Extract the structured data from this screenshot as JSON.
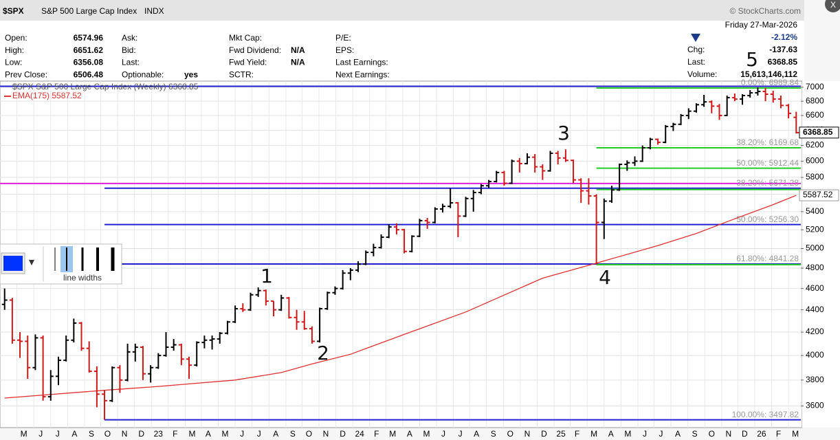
{
  "header": {
    "symbol": "$SPX",
    "name": "S&P 500 Large Cap Index",
    "exchange": "INDX",
    "credit": "© StockCharts.com",
    "columns": [
      [
        {
          "label": "Open:",
          "value": 6574.96
        },
        {
          "label": "High:",
          "value": 6651.62
        },
        {
          "label": "Low:",
          "value": 6356.08
        },
        {
          "label": "Prev Close:",
          "value": 6506.48
        }
      ],
      [
        {
          "label": "Ask:"
        },
        {
          "label": "Bid:"
        },
        {
          "label": "Last:"
        },
        {
          "label": "Optionable:",
          "value": "yes"
        }
      ],
      [
        {
          "label": "Mkt Cap:"
        },
        {
          "label": "Fwd Dividend:",
          "value": "N/A"
        },
        {
          "label": "Fwd Yield:",
          "value": "N/A"
        },
        {
          "label": "SCTR:"
        }
      ],
      [
        {
          "label": "P/E:"
        },
        {
          "label": "EPS:"
        },
        {
          "label": "Last Earnings:"
        },
        {
          "label": "Next Earnings:"
        }
      ]
    ],
    "date": "Friday  27-Mar-2026",
    "change_pct": "-2.12%",
    "chg_label": "Chg:",
    "chg": -137.63,
    "last_label": "Last:",
    "last": 6368.85,
    "volume_label": "Volume:",
    "volume": "15,613,146,112"
  },
  "widget": {
    "label": "line widths",
    "color": "#0033ff"
  },
  "chart_data": {
    "type": "ohlc",
    "legend": "$SPX S&P 500 Large Cap Index (Weekly) 6368.85",
    "up_color": "#000000",
    "down_color": "#d01818",
    "ohlc": [
      [
        4450,
        4600,
        4400,
        4490
      ],
      [
        4490,
        4510,
        4100,
        4130
      ],
      [
        4130,
        4200,
        3980,
        4120
      ],
      [
        4120,
        4170,
        3810,
        3900
      ],
      [
        3900,
        4180,
        3880,
        4150
      ],
      [
        4150,
        4170,
        3640,
        3670
      ],
      [
        3670,
        3880,
        3640,
        3830
      ],
      [
        3830,
        3990,
        3760,
        3960
      ],
      [
        3960,
        4170,
        3950,
        4130
      ],
      [
        4130,
        4320,
        4110,
        4280
      ],
      [
        4280,
        4290,
        4040,
        4060
      ],
      [
        4060,
        4120,
        3860,
        3870
      ],
      [
        3870,
        3910,
        3590,
        3690
      ],
      [
        3690,
        3720,
        3497.82,
        3640
      ],
      [
        3640,
        3910,
        3630,
        3900
      ],
      [
        3900,
        3920,
        3700,
        3800
      ],
      [
        3800,
        4100,
        3790,
        4030
      ],
      [
        4030,
        4100,
        3950,
        4070
      ],
      [
        4070,
        4080,
        3800,
        3850
      ],
      [
        3850,
        3920,
        3780,
        3900
      ],
      [
        3900,
        4020,
        3890,
        4000
      ],
      [
        4000,
        4200,
        3990,
        4070
      ],
      [
        4070,
        4140,
        4040,
        4090
      ],
      [
        4090,
        4100,
        3920,
        3970
      ],
      [
        3970,
        3990,
        3810,
        3920
      ],
      [
        3920,
        4120,
        3910,
        4110
      ],
      [
        4110,
        4170,
        4060,
        4130
      ],
      [
        4130,
        4170,
        4050,
        4140
      ],
      [
        4140,
        4200,
        4100,
        4190
      ],
      [
        4190,
        4300,
        4180,
        4290
      ],
      [
        4290,
        4440,
        4280,
        4410
      ],
      [
        4410,
        4460,
        4380,
        4400
      ],
      [
        4400,
        4560,
        4390,
        4540
      ],
      [
        4540,
        4610,
        4520,
        4580
      ],
      [
        4580,
        4590,
        4440,
        4480
      ],
      [
        4480,
        4480,
        4340,
        4400
      ],
      [
        4400,
        4540,
        4390,
        4510
      ],
      [
        4510,
        4520,
        4320,
        4330
      ],
      [
        4330,
        4400,
        4220,
        4290
      ],
      [
        4290,
        4390,
        4220,
        4230
      ],
      [
        4230,
        4250,
        4100,
        4120
      ],
      [
        4120,
        4420,
        4110,
        4410
      ],
      [
        4410,
        4570,
        4400,
        4560
      ],
      [
        4560,
        4620,
        4540,
        4600
      ],
      [
        4600,
        4780,
        4590,
        4750
      ],
      [
        4750,
        4800,
        4680,
        4780
      ],
      [
        4780,
        4870,
        4760,
        4840
      ],
      [
        4840,
        4980,
        4830,
        4960
      ],
      [
        4960,
        5050,
        4920,
        5010
      ],
      [
        5010,
        5150,
        5000,
        5120
      ],
      [
        5120,
        5260,
        5110,
        5230
      ],
      [
        5230,
        5270,
        5150,
        5200
      ],
      [
        5200,
        5210,
        4950,
        4970
      ],
      [
        4970,
        5140,
        4960,
        5130
      ],
      [
        5130,
        5320,
        5120,
        5300
      ],
      [
        5300,
        5330,
        5210,
        5280
      ],
      [
        5280,
        5450,
        5270,
        5430
      ],
      [
        5430,
        5490,
        5390,
        5460
      ],
      [
        5460,
        5670,
        5440,
        5500
      ],
      [
        5500,
        5510,
        5120,
        5350
      ],
      [
        5350,
        5570,
        5340,
        5550
      ],
      [
        5550,
        5650,
        5400,
        5620
      ],
      [
        5620,
        5720,
        5600,
        5700
      ],
      [
        5700,
        5770,
        5670,
        5750
      ],
      [
        5750,
        5880,
        5740,
        5860
      ],
      [
        5860,
        5880,
        5700,
        5730
      ],
      [
        5730,
        6020,
        5720,
        6000
      ],
      [
        6000,
        6040,
        5860,
        5970
      ],
      [
        5970,
        6100,
        5960,
        6050
      ],
      [
        6050,
        6090,
        5860,
        5930
      ],
      [
        5930,
        5960,
        5770,
        5880
      ],
      [
        5880,
        6130,
        5870,
        6100
      ],
      [
        6100,
        6130,
        5960,
        6040
      ],
      [
        6040,
        6150,
        5990,
        6010
      ],
      [
        6010,
        6020,
        5730,
        5770
      ],
      [
        5770,
        5790,
        5500,
        5640
      ],
      [
        5640,
        5790,
        5480,
        5580
      ],
      [
        5580,
        5600,
        4835.04,
        5280
      ],
      [
        5280,
        5550,
        5100,
        5520
      ],
      [
        5520,
        5700,
        5500,
        5650
      ],
      [
        5650,
        5970,
        5640,
        5960
      ],
      [
        5960,
        6010,
        5880,
        5980
      ],
      [
        5980,
        6060,
        5940,
        6000
      ],
      [
        6000,
        6200,
        5990,
        6170
      ],
      [
        6170,
        6300,
        6150,
        6280
      ],
      [
        6280,
        6290,
        6210,
        6240
      ],
      [
        6240,
        6470,
        6230,
        6450
      ],
      [
        6450,
        6500,
        6390,
        6480
      ],
      [
        6480,
        6620,
        6470,
        6600
      ],
      [
        6600,
        6700,
        6550,
        6660
      ],
      [
        6660,
        6770,
        6640,
        6750
      ],
      [
        6750,
        6890,
        6720,
        6790
      ],
      [
        6790,
        6810,
        6630,
        6730
      ],
      [
        6730,
        6760,
        6540,
        6600
      ],
      [
        6600,
        6880,
        6590,
        6850
      ],
      [
        6850,
        6910,
        6800,
        6830
      ],
      [
        6830,
        6900,
        6750,
        6880
      ],
      [
        6880,
        6960,
        6850,
        6920
      ],
      [
        6920,
        7000,
        6880,
        6940
      ],
      [
        6940,
        6990,
        6800,
        6900
      ],
      [
        6900,
        6950,
        6780,
        6830
      ],
      [
        6830,
        6880,
        6700,
        6740
      ],
      [
        6740,
        6760,
        6560,
        6630
      ],
      [
        6574.96,
        6651.62,
        6356.08,
        6368.85
      ]
    ],
    "ema": {
      "name": "EMA(175) 5587.52",
      "color": "#e03030",
      "x": [
        0,
        13,
        20,
        30,
        36,
        40,
        45,
        52,
        60,
        70,
        77,
        85,
        90,
        95,
        100,
        103
      ],
      "values": [
        3660,
        3720,
        3750,
        3800,
        3860,
        3930,
        4010,
        4180,
        4380,
        4700,
        4850,
        5030,
        5160,
        5320,
        5480,
        5587.52
      ]
    },
    "hlines": [
      {
        "value": 7014.8,
        "color": "#2020d0",
        "start": -0.6
      },
      {
        "value": 5727,
        "color": "#e020e0",
        "start": -0.6
      },
      {
        "value": 5671.28,
        "color": "#2020d0",
        "start": 13,
        "label": "38.20%: 5671.28"
      },
      {
        "value": 5256.3,
        "color": "#2020d0",
        "start": 13,
        "label": "50.00%: 5256.30"
      },
      {
        "value": 4841.28,
        "color": "#2020d0",
        "start": 13,
        "label": "61.80%: 4841.28"
      },
      {
        "value": 3497.82,
        "color": "#2020d0",
        "start": 13,
        "label": "100.00%: 3497.82"
      },
      {
        "value": 6989.84,
        "color": "#22cc22",
        "start": 77,
        "label": "0.00%: 6989.84"
      },
      {
        "value": 6169.68,
        "color": "#22cc22",
        "start": 77,
        "label": "38.20%: 6169.68"
      },
      {
        "value": 5912.44,
        "color": "#22cc22",
        "start": 77,
        "label": "50.00%: 5912.44"
      },
      {
        "value": 5655.2,
        "color": "#22cc22",
        "start": 77
      },
      {
        "value": 4835.04,
        "color": "#22cc22",
        "start": 77
      }
    ],
    "log_scale": true,
    "grid": true,
    "xlim": [
      -0.6,
      103.6
    ],
    "ylim": [
      3441,
      7111
    ],
    "yticks": [
      3600,
      3800,
      4000,
      4200,
      4400,
      4600,
      4800,
      5000,
      5200,
      5400,
      5600,
      5800,
      6000,
      6200,
      6400,
      6600,
      6800,
      7000
    ],
    "xticks": [
      {
        "value": 1.6,
        "label": "M"
      },
      {
        "value": 3.8,
        "label": "J"
      },
      {
        "value": 6.0,
        "label": "J"
      },
      {
        "value": 8.2,
        "label": "A"
      },
      {
        "value": 10.4,
        "label": "S"
      },
      {
        "value": 12.5,
        "label": "O"
      },
      {
        "value": 14.7,
        "label": "N"
      },
      {
        "value": 16.9,
        "label": "D"
      },
      {
        "value": 19.1,
        "label": "23"
      },
      {
        "value": 21.3,
        "label": "F"
      },
      {
        "value": 23.5,
        "label": "M"
      },
      {
        "value": 25.6,
        "label": "A"
      },
      {
        "value": 27.8,
        "label": "M"
      },
      {
        "value": 30.0,
        "label": "J"
      },
      {
        "value": 32.2,
        "label": "J"
      },
      {
        "value": 34.4,
        "label": "A"
      },
      {
        "value": 36.6,
        "label": "S"
      },
      {
        "value": 38.7,
        "label": "O"
      },
      {
        "value": 40.9,
        "label": "N"
      },
      {
        "value": 43.1,
        "label": "D"
      },
      {
        "value": 45.3,
        "label": "24"
      },
      {
        "value": 47.5,
        "label": "F"
      },
      {
        "value": 49.6,
        "label": "M"
      },
      {
        "value": 51.8,
        "label": "A"
      },
      {
        "value": 54.0,
        "label": "M"
      },
      {
        "value": 56.2,
        "label": "J"
      },
      {
        "value": 58.4,
        "label": "J"
      },
      {
        "value": 60.5,
        "label": "A"
      },
      {
        "value": 62.7,
        "label": "S"
      },
      {
        "value": 64.9,
        "label": "O"
      },
      {
        "value": 67.1,
        "label": "N"
      },
      {
        "value": 69.3,
        "label": "D"
      },
      {
        "value": 71.5,
        "label": "25"
      },
      {
        "value": 73.6,
        "label": "F"
      },
      {
        "value": 75.8,
        "label": "M"
      },
      {
        "value": 78.0,
        "label": "A"
      },
      {
        "value": 80.2,
        "label": "M"
      },
      {
        "value": 82.4,
        "label": "J"
      },
      {
        "value": 84.5,
        "label": "J"
      },
      {
        "value": 86.7,
        "label": "A"
      },
      {
        "value": 88.9,
        "label": "S"
      },
      {
        "value": 91.1,
        "label": "O"
      },
      {
        "value": 93.3,
        "label": "N"
      },
      {
        "value": 95.4,
        "label": "D"
      },
      {
        "value": 97.6,
        "label": "26"
      },
      {
        "value": 99.8,
        "label": "F"
      },
      {
        "value": 102.0,
        "label": "M"
      }
    ],
    "annotations": [
      "1",
      "2",
      "3",
      "4",
      "5"
    ]
  }
}
